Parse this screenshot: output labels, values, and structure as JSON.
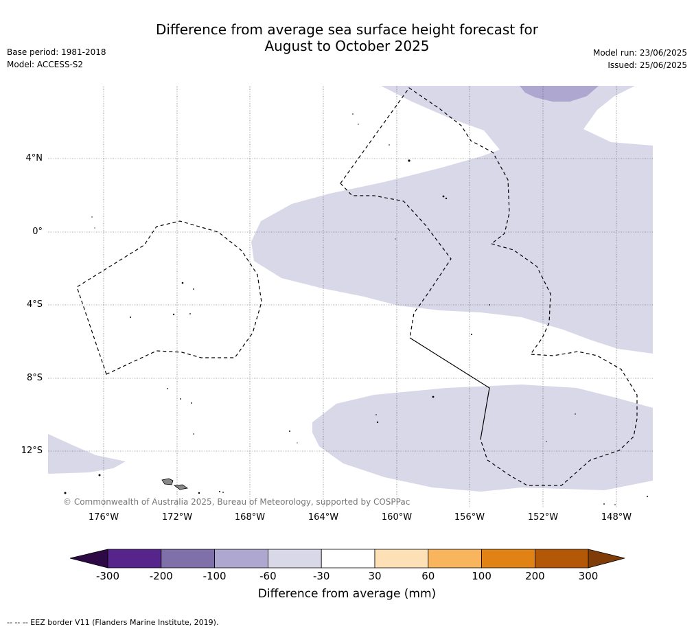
{
  "title_line1": "Difference from average sea surface height forecast for",
  "title_line2": "August to October 2025",
  "base_period": "Base period: 1981-2018",
  "model": "Model: ACCESS-S2",
  "model_run": "Model run: 23/06/2025",
  "issued": "Issued: 25/06/2025",
  "lat_labels": [
    "4°N",
    "0°",
    "4°S",
    "8°S",
    "12°S"
  ],
  "lon_labels": [
    "176°W",
    "172°W",
    "168°W",
    "164°W",
    "160°W",
    "156°W",
    "152°W",
    "148°W"
  ],
  "copyright": "© Commonwealth of Australia 2025, Bureau of Meteorology, supported by COSPPac",
  "colorbar": {
    "ticks": [
      "-300",
      "-200",
      "-100",
      "-60",
      "-30",
      "30",
      "60",
      "100",
      "200",
      "300"
    ],
    "colors": [
      "#2d0a45",
      "#56248a",
      "#8070aa",
      "#aea7cf",
      "#d8d8e9",
      "#ffffff",
      "#fde0b6",
      "#f8b55e",
      "#e08214",
      "#b35806",
      "#7f3b08"
    ],
    "title": "Difference from average (mm)"
  },
  "footnote": "--  --  -- EEZ border V11 (Flanders Marine Institute, 2019)."
}
